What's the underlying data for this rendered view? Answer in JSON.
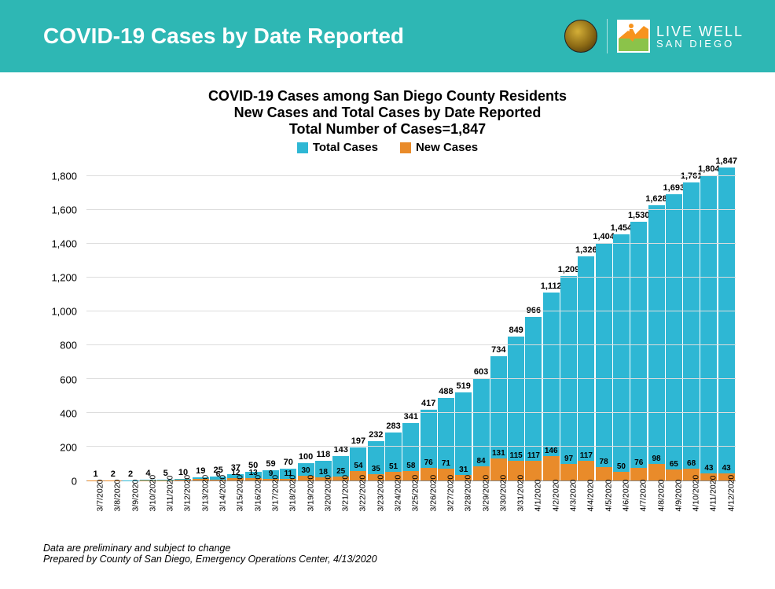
{
  "header": {
    "title": "COVID-19 Cases by Date Reported",
    "logo_text_top": "LIVE WELL",
    "logo_text_bottom": "SAN DIEGO"
  },
  "chart": {
    "type": "bar",
    "title1": "COVID-19 Cases among San Diego County Residents",
    "title2": "New Cases and Total Cases by Date Reported",
    "title3": "Total Number of Cases=1,847",
    "title_fontsize": 18,
    "legend": [
      {
        "label": "Total Cases",
        "color": "#2eb7d4"
      },
      {
        "label": "New Cases",
        "color": "#e98b2a"
      }
    ],
    "ylim": [
      0,
      1800
    ],
    "ymax_plot": 1900,
    "ytick_step": 200,
    "yticks": [
      0,
      200,
      400,
      600,
      800,
      1000,
      1200,
      1400,
      1600,
      1800
    ],
    "ytick_labels": [
      "0",
      "200",
      "400",
      "600",
      "800",
      "1,000",
      "1,200",
      "1,400",
      "1,600",
      "1,800"
    ],
    "grid_color": "#dddddd",
    "background_color": "#ffffff",
    "bar_color_total": "#2eb7d4",
    "bar_color_new": "#e98b2a",
    "label_fontsize": 11,
    "xlabel_fontsize": 10.5,
    "categories": [
      "3/7/2020",
      "3/8/2020",
      "3/9/2020",
      "3/10/2020",
      "3/11/2020",
      "3/12/2020",
      "3/13/2020",
      "3/14/2020",
      "3/15/2020",
      "3/16/2020",
      "3/17/2020",
      "3/18/2020",
      "3/19/2020",
      "3/20/2020",
      "3/21/2020",
      "3/22/2020",
      "3/23/2020",
      "3/24/2020",
      "3/25/2020",
      "3/26/2020",
      "3/27/2020",
      "3/28/2020",
      "3/29/2020",
      "3/30/2020",
      "3/31/2020",
      "4/1/2020",
      "4/2/2020",
      "4/3/2020",
      "4/4/2020",
      "4/5/2020",
      "4/6/2020",
      "4/7/2020",
      "4/8/2020",
      "4/9/2020",
      "4/10/2020",
      "4/11/2020",
      "4/12/2020"
    ],
    "total_values": [
      1,
      2,
      2,
      4,
      5,
      10,
      19,
      25,
      37,
      50,
      59,
      70,
      100,
      118,
      143,
      197,
      232,
      283,
      341,
      417,
      488,
      519,
      603,
      734,
      849,
      966,
      1112,
      1209,
      1326,
      1404,
      1454,
      1530,
      1628,
      1693,
      1761,
      1804,
      1847
    ],
    "total_labels": [
      "1",
      "2",
      "2",
      "4",
      "5",
      "10",
      "19",
      "25",
      "37",
      "50",
      "59",
      "70",
      "100",
      "118",
      "143",
      "197",
      "232",
      "283",
      "341",
      "417",
      "488",
      "519",
      "603",
      "734",
      "849",
      "966",
      "1,112",
      "1,209",
      "1,326",
      "1,404",
      "1,454",
      "1,530",
      "1,628",
      "1,693",
      "1,761",
      "1,804",
      "1,847"
    ],
    "new_values": [
      1,
      1,
      0,
      2,
      1,
      5,
      9,
      6,
      12,
      13,
      9,
      11,
      30,
      18,
      25,
      54,
      35,
      51,
      58,
      76,
      71,
      31,
      84,
      131,
      115,
      117,
      146,
      97,
      117,
      78,
      50,
      76,
      98,
      65,
      68,
      43,
      43
    ],
    "new_labels": [
      "1",
      "1",
      "",
      "2",
      "1",
      "5",
      "9",
      "6",
      "12",
      "13",
      "9",
      "11",
      "30",
      "18",
      "25",
      "54",
      "35",
      "51",
      "58",
      "76",
      "71",
      "31",
      "84",
      "131",
      "115",
      "117",
      "146",
      "97",
      "117",
      "78",
      "50",
      "76",
      "98",
      "65",
      "68",
      "43",
      "43"
    ]
  },
  "footer": {
    "line1": "Data are preliminary and subject to change",
    "line2": "Prepared by County of San Diego, Emergency Operations Center, 4/13/2020"
  }
}
